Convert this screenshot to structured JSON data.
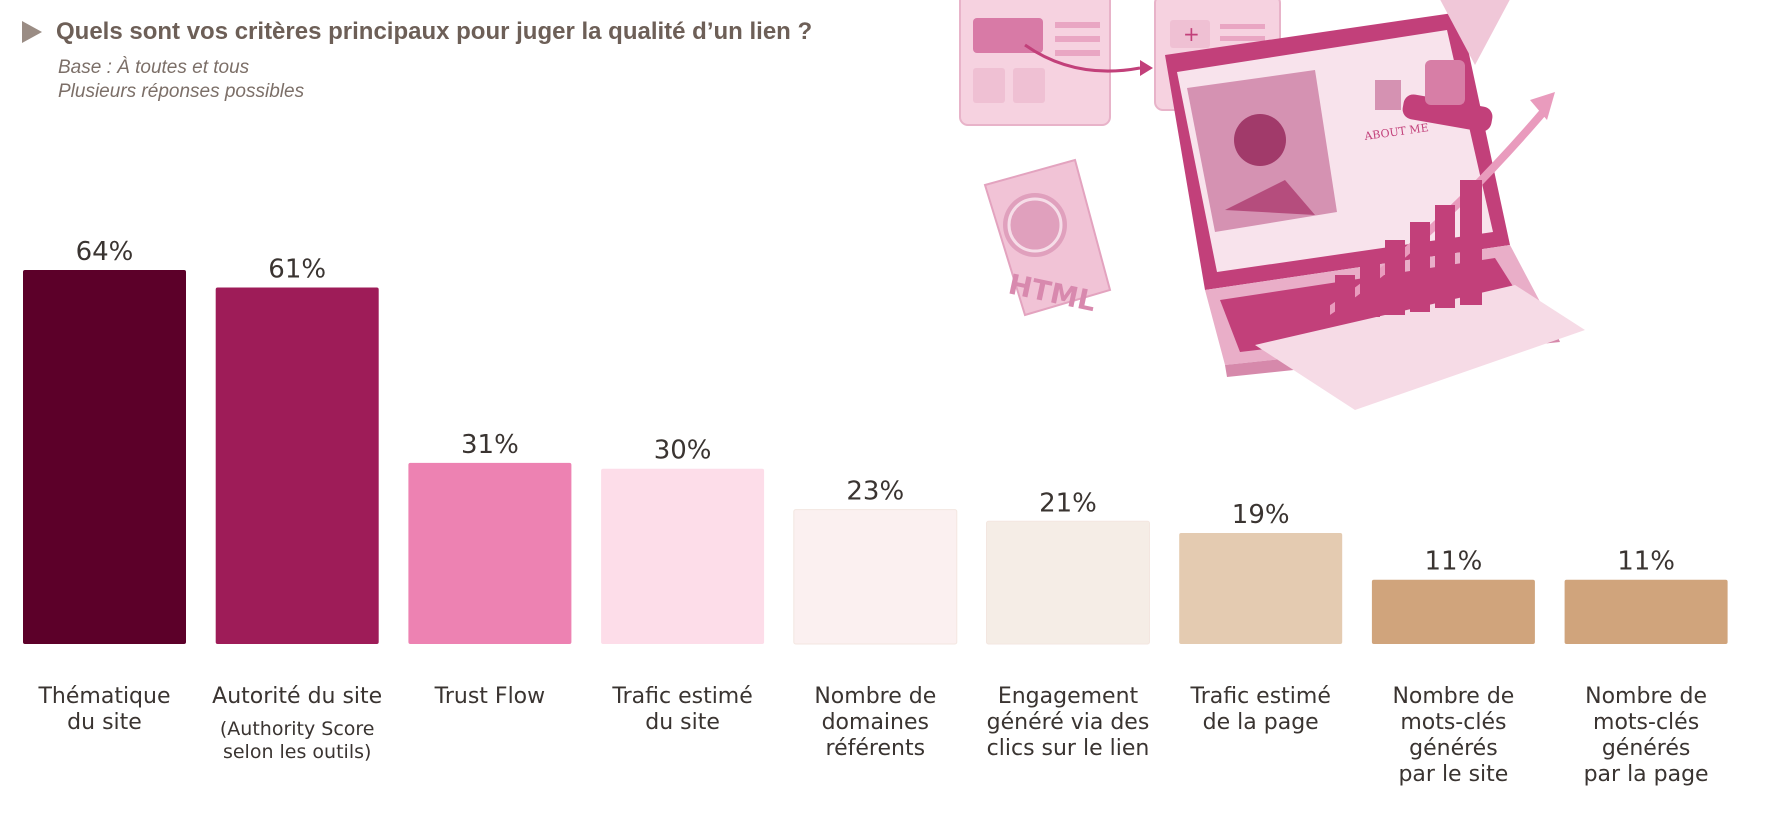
{
  "header": {
    "title": "Quels sont vos critères principaux pour juger la qualité d’un lien ?",
    "subtitle_line1": "Base : À toutes et tous",
    "subtitle_line2": "Plusieurs réponses possibles"
  },
  "illustration": {
    "about_text": "ABOUT ME",
    "html_text": "HTML",
    "colors": {
      "primary": "#c2407a",
      "light": "#f3cadb",
      "pale": "#f8e3ec"
    }
  },
  "chart_data": {
    "type": "bar",
    "categories": [
      {
        "lines": [
          "Thématique",
          "du site"
        ],
        "note": []
      },
      {
        "lines": [
          "Autorité du site"
        ],
        "note": [
          "(Authority Score",
          "selon les outils)"
        ]
      },
      {
        "lines": [
          "Trust Flow"
        ],
        "note": []
      },
      {
        "lines": [
          "Trafic estimé",
          "du site"
        ],
        "note": []
      },
      {
        "lines": [
          "Nombre de",
          "domaines",
          "référents"
        ],
        "note": []
      },
      {
        "lines": [
          "Engagement",
          "généré via des",
          "clics sur le lien"
        ],
        "note": []
      },
      {
        "lines": [
          "Trafic estimé",
          "de la page"
        ],
        "note": []
      },
      {
        "lines": [
          "Nombre de",
          "mots-clés",
          "générés",
          "par le site"
        ],
        "note": []
      },
      {
        "lines": [
          "Nombre de",
          "mots-clés",
          "générés",
          "par la page"
        ],
        "note": []
      }
    ],
    "values": [
      64,
      61,
      31,
      30,
      23,
      21,
      19,
      11,
      11
    ],
    "value_labels": [
      "64%",
      "61%",
      "31%",
      "30%",
      "23%",
      "21%",
      "19%",
      "11%",
      "11%"
    ],
    "colors": [
      "#5c0029",
      "#9e1c58",
      "#ed82b2",
      "#fddde9",
      "#fbf0f0",
      "#f5ede6",
      "#e4cbb1",
      "#d0a47c",
      "#d0a47c"
    ],
    "ylim": [
      0,
      64
    ],
    "grid": false,
    "legend": "none"
  }
}
